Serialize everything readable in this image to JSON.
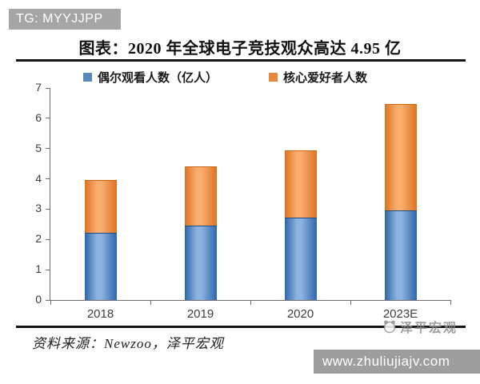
{
  "badge": {
    "label": "TG: MYYJJPP"
  },
  "footer": {
    "source": "资料来源：Newzoo，泽平宏观",
    "watermark": "泽平宏观",
    "url": "www.zhuliujiajv.com"
  },
  "chart_data": {
    "type": "bar",
    "stacked": true,
    "title": "图表：2020 年全球电子竞技观众高达 4.95 亿",
    "categories": [
      "2018",
      "2019",
      "2020",
      "2023E"
    ],
    "series": [
      {
        "name": "偶尔观看人数（亿人）",
        "values": [
          2.22,
          2.45,
          2.72,
          2.95
        ],
        "color": "#2d66ab",
        "color_light": "#8fb3e0",
        "swatch": "#5b88bb"
      },
      {
        "name": "核心爱好者人数",
        "values": [
          1.73,
          1.95,
          2.23,
          3.51
        ],
        "color": "#dd7321",
        "color_light": "#f9ae70",
        "swatch": "#e6873c"
      }
    ],
    "totals": [
      3.95,
      4.4,
      4.95,
      6.46
    ],
    "xlabel": "",
    "ylabel": "",
    "ylim": [
      0,
      7
    ],
    "y_ticks": [
      0,
      1,
      2,
      3,
      4,
      5,
      6,
      7
    ],
    "grid": false,
    "legend_position": "top"
  }
}
